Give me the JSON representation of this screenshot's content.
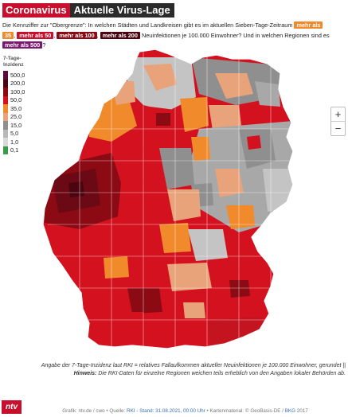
{
  "title": {
    "primary": "Coronavirus",
    "secondary": "Aktuelle Virus-Lage"
  },
  "intro": {
    "text_1": "Die Kennziffer zur \"Obergrenze\": In welchen Städten und Landkreisen gibt es im aktuellen Sieben-Tage-Zeitraum",
    "chip_35_a": "mehr als",
    "chip_35_b": "35",
    "chip_50": "mehr als 50",
    "chip_100": "mehr als 100",
    "chip_200": "mehr als 200",
    "text_2": "Neuinfektionen je 100.000 Einwohner? Und in welchen Regionen sind es",
    "chip_500": "mehr als 500",
    "text_3": "?"
  },
  "legend": {
    "title_line1": "7-Tage-",
    "title_line2": "Inzidenz",
    "items": [
      {
        "label": "500,0",
        "color": "#5c0a3c"
      },
      {
        "label": "200,0",
        "color": "#4a0510"
      },
      {
        "label": "100,0",
        "color": "#8b0a14"
      },
      {
        "label": "50,0",
        "color": "#d4121f"
      },
      {
        "label": "35,0",
        "color": "#f08a2a"
      },
      {
        "label": "25,0",
        "color": "#e8a37a"
      },
      {
        "label": "15,0",
        "color": "#8f8f8f"
      },
      {
        "label": "5,0",
        "color": "#b8b8b8"
      },
      {
        "label": "1,0",
        "color": "#d9d9d9"
      },
      {
        "label": "0,1",
        "color": "#3a9b4a"
      }
    ]
  },
  "zoom": {
    "in": "+",
    "out": "−"
  },
  "notes": {
    "note1": "Angabe der 7-Tage-Inzidenz laut RKI = relatives Fallaufkommen aktueller Neuinfektionen je 100.000 Einwohner, gerundet ||",
    "note2_label": "Hinweis:",
    "note2_text": "Die RKI-Daten für einzelne Regionen weichen teils erheblich von den Angaben lokaler Behörden ab."
  },
  "logo": "ntv",
  "credits": {
    "prefix": "Grafik: ntv.de / cwo • Quelle:",
    "source": "RKI",
    "sep1": "-",
    "stand": "Stand: 31.08.2021, 00:00 Uhr",
    "mid": "• Kartenmaterial: © GeoBasis-DE /",
    "bkg": "BKG",
    "year": "2017"
  },
  "colors": {
    "west_cluster": "#6b0a14",
    "high": "#d4121f",
    "orange": "#f08a2a",
    "salmon": "#e8a37a",
    "gray_dark": "#8f8f8f",
    "gray_mid": "#a8a8a8",
    "gray_light": "#c4c4c4"
  }
}
